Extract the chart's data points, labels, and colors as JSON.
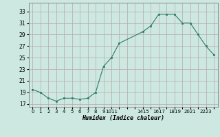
{
  "x": [
    0,
    1,
    2,
    3,
    4,
    5,
    6,
    7,
    8,
    9,
    10,
    11,
    14,
    15,
    16,
    17,
    18,
    19,
    20,
    21,
    22,
    23
  ],
  "y": [
    19.5,
    19.0,
    18.0,
    17.5,
    18.0,
    18.0,
    17.8,
    18.0,
    19.0,
    23.5,
    25.0,
    27.5,
    29.5,
    30.5,
    32.5,
    32.5,
    32.5,
    31.0,
    31.0,
    29.0,
    27.0,
    25.5
  ],
  "line_color": "#2d7a6a",
  "marker_color": "#2d7a6a",
  "bg_color": "#cce8e0",
  "grid_color": "#b8a8a8",
  "ylabel_values": [
    17,
    19,
    21,
    23,
    25,
    27,
    29,
    31,
    33
  ],
  "xlabel": "Humidex (Indice chaleur)",
  "ylim": [
    16.5,
    34.5
  ],
  "xlim": [
    -0.5,
    23.5
  ]
}
